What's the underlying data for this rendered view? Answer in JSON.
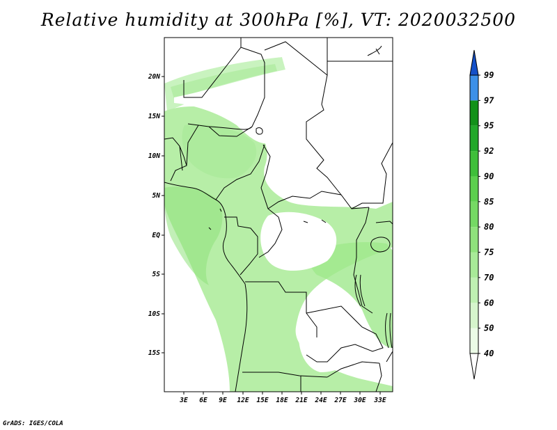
{
  "title": "Relative humidity at 300hPa [%], VT: 2020032500",
  "credit": "GrADS: IGES/COLA",
  "axes": {
    "lat_labels": [
      "20N",
      "15N",
      "10N",
      "5N",
      "EQ",
      "5S",
      "10S",
      "15S"
    ],
    "lon_labels": [
      "3E",
      "6E",
      "9E",
      "12E",
      "15E",
      "18E",
      "21E",
      "24E",
      "27E",
      "30E",
      "33E"
    ]
  },
  "colorbar": {
    "levels": [
      "40",
      "50",
      "60",
      "70",
      "75",
      "80",
      "85",
      "90",
      "92",
      "95",
      "97",
      "99"
    ],
    "colors": [
      "#ebfbe6",
      "#d6f5cc",
      "#bff0b2",
      "#a8ea98",
      "#8fe27c",
      "#75d964",
      "#5ccf4e",
      "#3fbf3a",
      "#22a82a",
      "#129119",
      "#3d90e8",
      "#2170d8",
      "#1450c8"
    ]
  },
  "colors": {
    "land_outline": "#000000",
    "low_humidity": "#ffffff"
  }
}
